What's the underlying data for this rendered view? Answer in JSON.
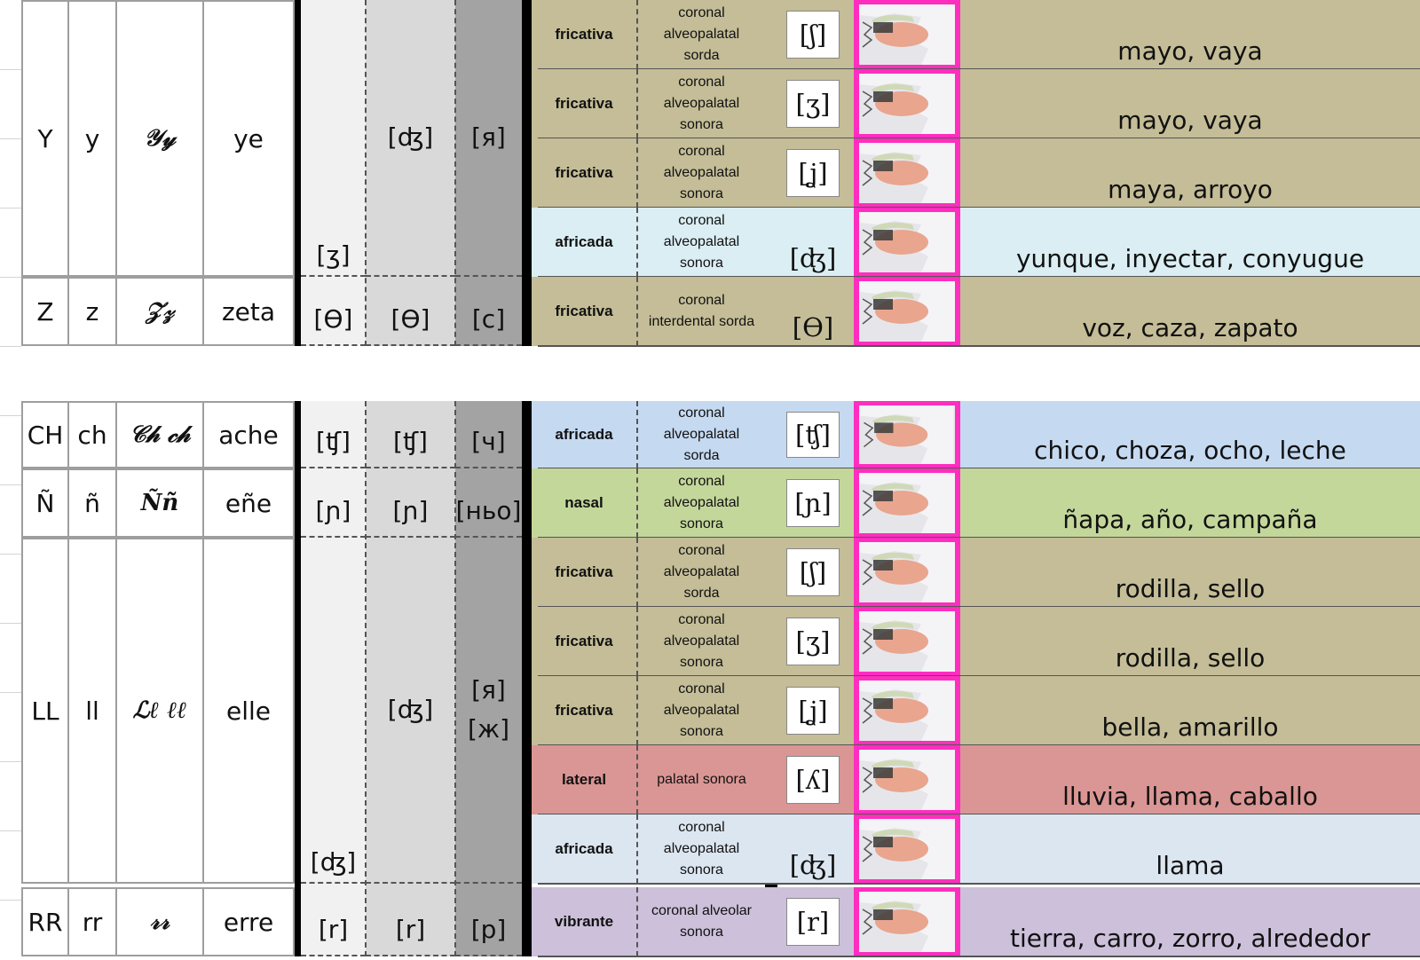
{
  "groups": [
    {
      "upper": "Y",
      "lower": "y",
      "cursive": "𝒴𝓎",
      "name": "ye",
      "ipa1": "[ʒ]",
      "ipa2": "[ʤ]",
      "cyr": "[я]",
      "rows": [
        0,
        1,
        2,
        3
      ]
    },
    {
      "upper": "Z",
      "lower": "z",
      "cursive": "𝒵𝓏",
      "name": "zeta",
      "ipa1": "[Ө]",
      "ipa2": "[Ө]",
      "cyr": "[с]",
      "rows": [
        4
      ]
    },
    {
      "upper": "CH",
      "lower": "ch",
      "cursive": "𝒞𝒽 𝒸𝒽",
      "name": "ache",
      "ipa1": "[ʧ]",
      "ipa2": "[ʧ]",
      "cyr": "[ч]",
      "rows": [
        5
      ]
    },
    {
      "upper": "Ñ",
      "lower": "ñ",
      "cursive": "Ññ",
      "name": "eñe",
      "ipa1": "[ɲ]",
      "ipa2": "[ɲ]",
      "cyr": "[ньо]",
      "rows": [
        6
      ]
    },
    {
      "upper": "LL",
      "lower": "ll",
      "cursive": "ℒℓ ℓℓ",
      "name": "elle",
      "ipa1": "[ʤ]",
      "ipa2": "[ʤ]",
      "cyr": "[я]\n[ж]",
      "rows": [
        7,
        8,
        9,
        10,
        11
      ]
    },
    {
      "upper": "RR",
      "lower": "rr",
      "cursive": "𝓇𝓇",
      "name": "erre",
      "ipa1": "[r]",
      "ipa2": "[r]",
      "cyr": "[р]",
      "rows": [
        12
      ]
    }
  ],
  "rows": [
    {
      "type": "fricativa",
      "desc": "coronal\nalveopalatal\nsorda",
      "ipa": "[ʃ]",
      "ipa_boxed": true,
      "example": "mayo, vaya",
      "color": "#c4bd97"
    },
    {
      "type": "fricativa",
      "desc": "coronal\nalveopalatal\nsonora",
      "ipa": "[ʒ]",
      "ipa_boxed": true,
      "example": "mayo, vaya",
      "color": "#c4bd97"
    },
    {
      "type": "fricativa",
      "desc": "coronal\nalveopalatal\nsonora",
      "ipa": "[ʝ]",
      "ipa_boxed": true,
      "example": "maya, arroyo",
      "color": "#c4bd97"
    },
    {
      "type": "africada",
      "desc": "coronal\nalveopalatal\nsonora",
      "ipa": "[ʤ]",
      "ipa_boxed": false,
      "example": "yunque, inyectar, conyugue",
      "color": "#daeef3"
    },
    {
      "type": "fricativa",
      "desc": "coronal\ninterdental sorda",
      "ipa": "[Ө]",
      "ipa_boxed": false,
      "example": "voz, caza, zapato",
      "color": "#c4bd97"
    },
    {
      "type": "africada",
      "desc": "coronal\nalveopalatal\nsorda",
      "ipa": "[ʧ]",
      "ipa_boxed": true,
      "example": "chico, choza, ocho, leche",
      "color": "#c5d9f1"
    },
    {
      "type": "nasal",
      "desc": "coronal\nalveopalatal\nsonora",
      "ipa": "[ɲ]",
      "ipa_boxed": true,
      "example": "ñapa, año, campaña",
      "color": "#c4d79b"
    },
    {
      "type": "fricativa",
      "desc": "coronal\nalveopalatal\nsorda",
      "ipa": "[ʃ]",
      "ipa_boxed": true,
      "example": "rodilla, sello",
      "color": "#c4bd97"
    },
    {
      "type": "fricativa",
      "desc": "coronal\nalveopalatal\nsonora",
      "ipa": "[ʒ]",
      "ipa_boxed": true,
      "example": "rodilla, sello",
      "color": "#c4bd97"
    },
    {
      "type": "fricativa",
      "desc": "coronal\nalveopalatal\nsonora",
      "ipa": "[ʝ]",
      "ipa_boxed": true,
      "example": "bella, amarillo",
      "color": "#c4bd97"
    },
    {
      "type": "lateral",
      "desc": "palatal sonora",
      "ipa": "[ʎ]",
      "ipa_boxed": true,
      "example": "lluvia, llama, caballo",
      "color": "#da9694"
    },
    {
      "type": "africada",
      "desc": "coronal\nalveopalatal\nsonora",
      "ipa": "[ʤ]",
      "ipa_boxed": false,
      "example": "llama",
      "color": "#dce6f1"
    },
    {
      "type": "vibrante",
      "desc": "coronal alveolar\nsonora",
      "ipa": "[r]",
      "ipa_boxed": true,
      "example": "tierra, carro, zorro, alrededor",
      "color": "#ccc0da"
    }
  ]
}
